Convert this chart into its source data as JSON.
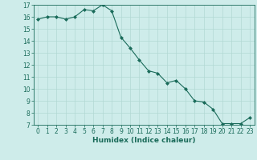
{
  "x": [
    0,
    1,
    2,
    3,
    4,
    5,
    6,
    7,
    8,
    9,
    10,
    11,
    12,
    13,
    14,
    15,
    16,
    17,
    18,
    19,
    20,
    21,
    22,
    23
  ],
  "y": [
    15.8,
    16.0,
    16.0,
    15.8,
    16.0,
    16.6,
    16.5,
    17.0,
    16.5,
    14.3,
    13.4,
    12.4,
    11.5,
    11.3,
    10.5,
    10.7,
    10.0,
    9.0,
    8.9,
    8.3,
    7.1,
    7.1,
    7.1,
    7.6
  ],
  "line_color": "#1a6b5a",
  "marker": "D",
  "marker_size": 2.0,
  "bg_color": "#ceecea",
  "grid_color": "#b2d8d4",
  "axis_color": "#1a6b5a",
  "xlabel": "Humidex (Indice chaleur)",
  "ylim": [
    7,
    17
  ],
  "xlim": [
    -0.5,
    23.5
  ],
  "yticks": [
    7,
    8,
    9,
    10,
    11,
    12,
    13,
    14,
    15,
    16,
    17
  ],
  "xticks": [
    0,
    1,
    2,
    3,
    4,
    5,
    6,
    7,
    8,
    9,
    10,
    11,
    12,
    13,
    14,
    15,
    16,
    17,
    18,
    19,
    20,
    21,
    22,
    23
  ],
  "tick_fontsize": 5.5,
  "xlabel_fontsize": 6.5,
  "linewidth": 0.8
}
